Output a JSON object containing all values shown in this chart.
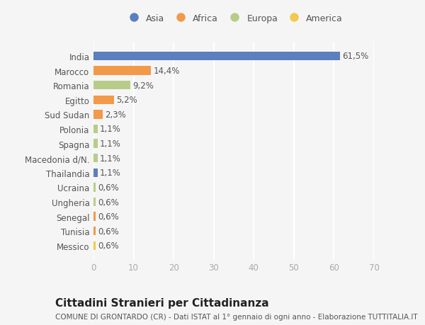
{
  "categories": [
    "Messico",
    "Tunisia",
    "Senegal",
    "Ungheria",
    "Ucraina",
    "Thailandia",
    "Macedonia d/N.",
    "Spagna",
    "Polonia",
    "Sud Sudan",
    "Egitto",
    "Romania",
    "Marocco",
    "India"
  ],
  "values": [
    0.6,
    0.6,
    0.6,
    0.6,
    0.6,
    1.1,
    1.1,
    1.1,
    1.1,
    2.3,
    5.2,
    9.2,
    14.4,
    61.5
  ],
  "labels": [
    "0,6%",
    "0,6%",
    "0,6%",
    "0,6%",
    "0,6%",
    "1,1%",
    "1,1%",
    "1,1%",
    "1,1%",
    "2,3%",
    "5,2%",
    "9,2%",
    "14,4%",
    "61,5%"
  ],
  "colors": [
    "#f2c94c",
    "#f2994a",
    "#f2994a",
    "#b8cc8a",
    "#b8cc8a",
    "#5b7fbf",
    "#b8cc8a",
    "#b8cc8a",
    "#b8cc8a",
    "#f2994a",
    "#f2994a",
    "#b8cc8a",
    "#f2994a",
    "#5b7fbf"
  ],
  "continent_colors": {
    "Asia": "#5b7fbf",
    "Africa": "#f2994a",
    "Europa": "#b8cc8a",
    "America": "#f2c94c"
  },
  "xlim": [
    0,
    70
  ],
  "xticks": [
    0,
    10,
    20,
    30,
    40,
    50,
    60,
    70
  ],
  "title": "Cittadini Stranieri per Cittadinanza",
  "subtitle": "COMUNE DI GRONTARDO (CR) - Dati ISTAT al 1° gennaio di ogni anno - Elaborazione TUTTITALIA.IT",
  "background_color": "#f5f5f5",
  "bar_height": 0.6,
  "label_fontsize": 8.5,
  "tick_fontsize": 8.5,
  "title_fontsize": 11,
  "subtitle_fontsize": 7.5
}
